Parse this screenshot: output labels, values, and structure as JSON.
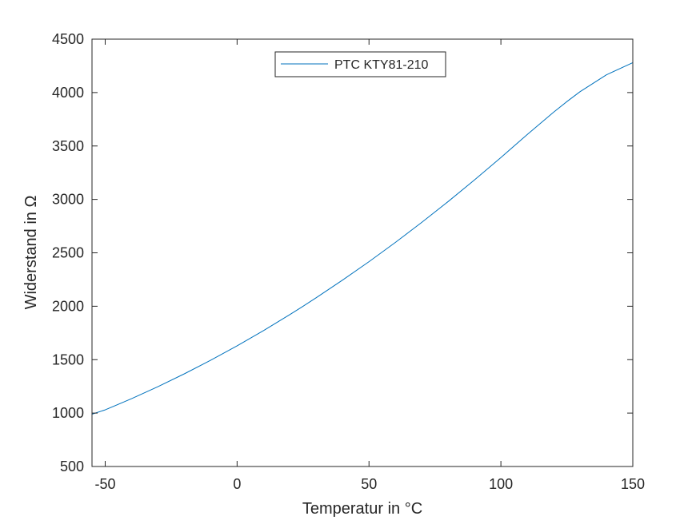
{
  "chart_data": {
    "type": "line",
    "xlabel": "Temperatur in °C",
    "ylabel": "Widerstand in Ω",
    "xlim": [
      -55,
      150
    ],
    "ylim": [
      500,
      4500
    ],
    "x_ticks": [
      -50,
      0,
      50,
      100,
      150
    ],
    "y_ticks": [
      500,
      1000,
      1500,
      2000,
      2500,
      3000,
      3500,
      4000,
      4500
    ],
    "x_tick_labels": [
      "-50",
      "0",
      "50",
      "100",
      "150"
    ],
    "y_tick_labels": [
      "500",
      "1000",
      "1500",
      "2000",
      "2500",
      "3000",
      "3500",
      "4000",
      "4500"
    ],
    "grid": false,
    "legend_position": "top-center",
    "series": [
      {
        "name": "PTC KTY81-210",
        "color": "#0072BD",
        "x": [
          -55,
          -50,
          -40,
          -30,
          -20,
          -10,
          0,
          10,
          20,
          25,
          30,
          40,
          50,
          60,
          70,
          80,
          90,
          100,
          110,
          120,
          125,
          130,
          140,
          150
        ],
        "y": [
          990,
          1030,
          1135,
          1247,
          1367,
          1495,
          1630,
          1772,
          1922,
          2000,
          2080,
          2245,
          2417,
          2597,
          2785,
          2980,
          3182,
          3392,
          3607,
          3817,
          3915,
          4008,
          4166,
          4280
        ]
      }
    ]
  }
}
